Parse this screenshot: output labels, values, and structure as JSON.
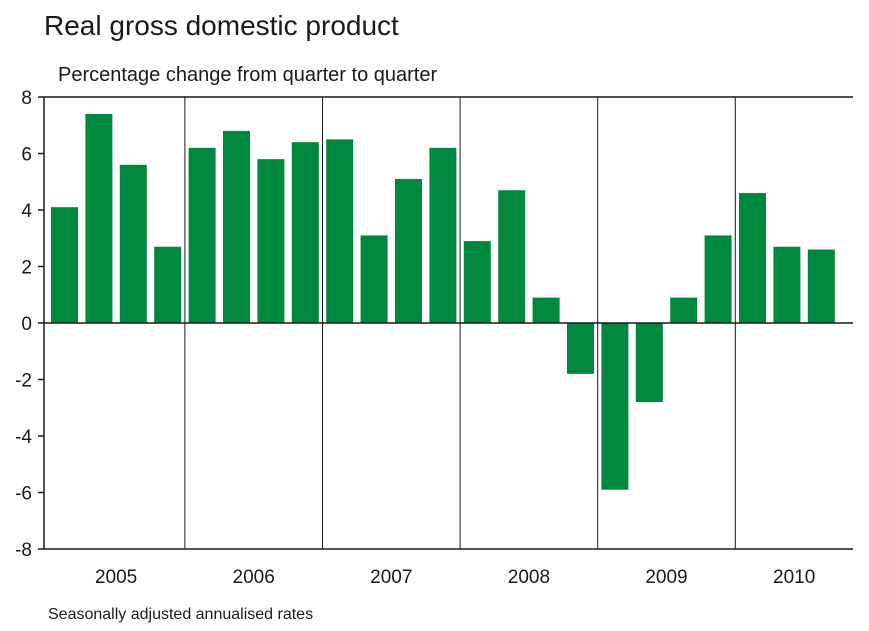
{
  "chart_data": {
    "type": "bar",
    "title": "Real gross domestic product",
    "subtitle": "Percentage change from quarter to quarter",
    "footnote": "Seasonally adjusted annualised rates",
    "xlabel": "",
    "ylabel": "",
    "ylim": [
      -8,
      8
    ],
    "yticks": [
      8,
      6,
      4,
      2,
      0,
      -2,
      -4,
      -6,
      -8
    ],
    "year_labels": [
      "2005",
      "2006",
      "2007",
      "2008",
      "2009",
      "2010"
    ],
    "categories": [
      "2005 Q1",
      "2005 Q2",
      "2005 Q3",
      "2005 Q4",
      "2006 Q1",
      "2006 Q2",
      "2006 Q3",
      "2006 Q4",
      "2007 Q1",
      "2007 Q2",
      "2007 Q3",
      "2007 Q4",
      "2008 Q1",
      "2008 Q2",
      "2008 Q3",
      "2008 Q4",
      "2009 Q1",
      "2009 Q2",
      "2009 Q3",
      "2009 Q4",
      "2010 Q1",
      "2010 Q2",
      "2010 Q3"
    ],
    "values": [
      4.1,
      7.4,
      5.6,
      2.7,
      6.2,
      6.8,
      5.8,
      6.4,
      6.5,
      3.1,
      5.1,
      6.2,
      2.9,
      4.7,
      0.9,
      -1.8,
      -5.9,
      -2.8,
      0.9,
      3.1,
      4.6,
      2.7,
      2.6
    ],
    "colors": {
      "bar": "#00893e",
      "axis": "#1a1a1a"
    },
    "grid": false,
    "legend": "none"
  }
}
